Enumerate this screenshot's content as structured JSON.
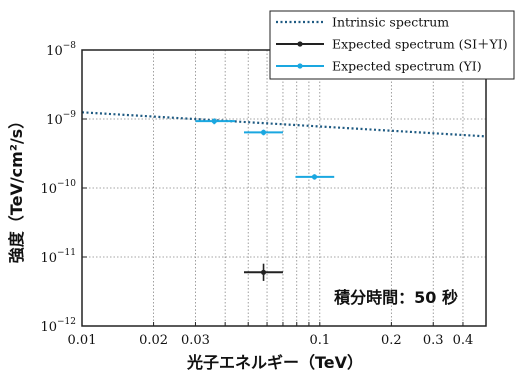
{
  "chart_data": {
    "type": "scatter",
    "xlabel": "光子エネルギー（TeV）",
    "ylabel": "強度（TeV/cm²/s）",
    "xscale": "log",
    "yscale": "log",
    "xlim": [
      0.01,
      0.5
    ],
    "ylim": [
      1e-12,
      1e-08
    ],
    "grid": true,
    "legend_position": "top-right",
    "annotation": "積分時間：50 秒",
    "x_ticks": [
      {
        "value": 0.01,
        "label": "0.01"
      },
      {
        "value": 0.02,
        "label": "0.02"
      },
      {
        "value": 0.03,
        "label": "0.03"
      },
      {
        "value": 0.1,
        "label": "0.1"
      },
      {
        "value": 0.2,
        "label": "0.2"
      },
      {
        "value": 0.3,
        "label": "0.3"
      },
      {
        "value": 0.4,
        "label": "0.4"
      }
    ],
    "y_ticks": [
      {
        "value": 1e-12,
        "base": "10",
        "exp": "−12"
      },
      {
        "value": 1e-11,
        "base": "10",
        "exp": "−11"
      },
      {
        "value": 1e-10,
        "base": "10",
        "exp": "−10"
      },
      {
        "value": 1e-09,
        "base": "10",
        "exp": "−9"
      },
      {
        "value": 1e-08,
        "base": "10",
        "exp": "−8"
      }
    ],
    "series": [
      {
        "name": "Intrinsic spectrum",
        "kind": "line",
        "style": "dotted",
        "color": "#1e5a82",
        "points": [
          {
            "x": 0.01,
            "y": 1.25e-09
          },
          {
            "x": 0.5,
            "y": 5.6e-10
          }
        ]
      },
      {
        "name": "Expected spectrum (SI＋YI)",
        "kind": "errorbar",
        "color": "#222222",
        "points": [
          {
            "x": 0.058,
            "y": 6e-12,
            "xmin": 0.048,
            "xmax": 0.07,
            "ymin": 4.5e-12,
            "ymax": 8e-12
          }
        ]
      },
      {
        "name": "Expected spectrum (YI)",
        "kind": "errorbar",
        "color": "#1aa7e0",
        "points": [
          {
            "x": 0.036,
            "y": 9.3e-10,
            "xmin": 0.03,
            "xmax": 0.044,
            "ymin": 8.4e-10,
            "ymax": 1.02e-09
          },
          {
            "x": 0.058,
            "y": 6.4e-10,
            "xmin": 0.048,
            "xmax": 0.07,
            "ymin": 5.8e-10,
            "ymax": 7e-10
          },
          {
            "x": 0.095,
            "y": 1.45e-10,
            "xmin": 0.079,
            "xmax": 0.115,
            "ymin": 1.32e-10,
            "ymax": 1.58e-10
          }
        ]
      }
    ]
  },
  "colors": {
    "intrinsic": "#1e5a82",
    "si_yi": "#222222",
    "yi": "#1aa7e0",
    "grid": "#888888",
    "frame": "#222222"
  }
}
